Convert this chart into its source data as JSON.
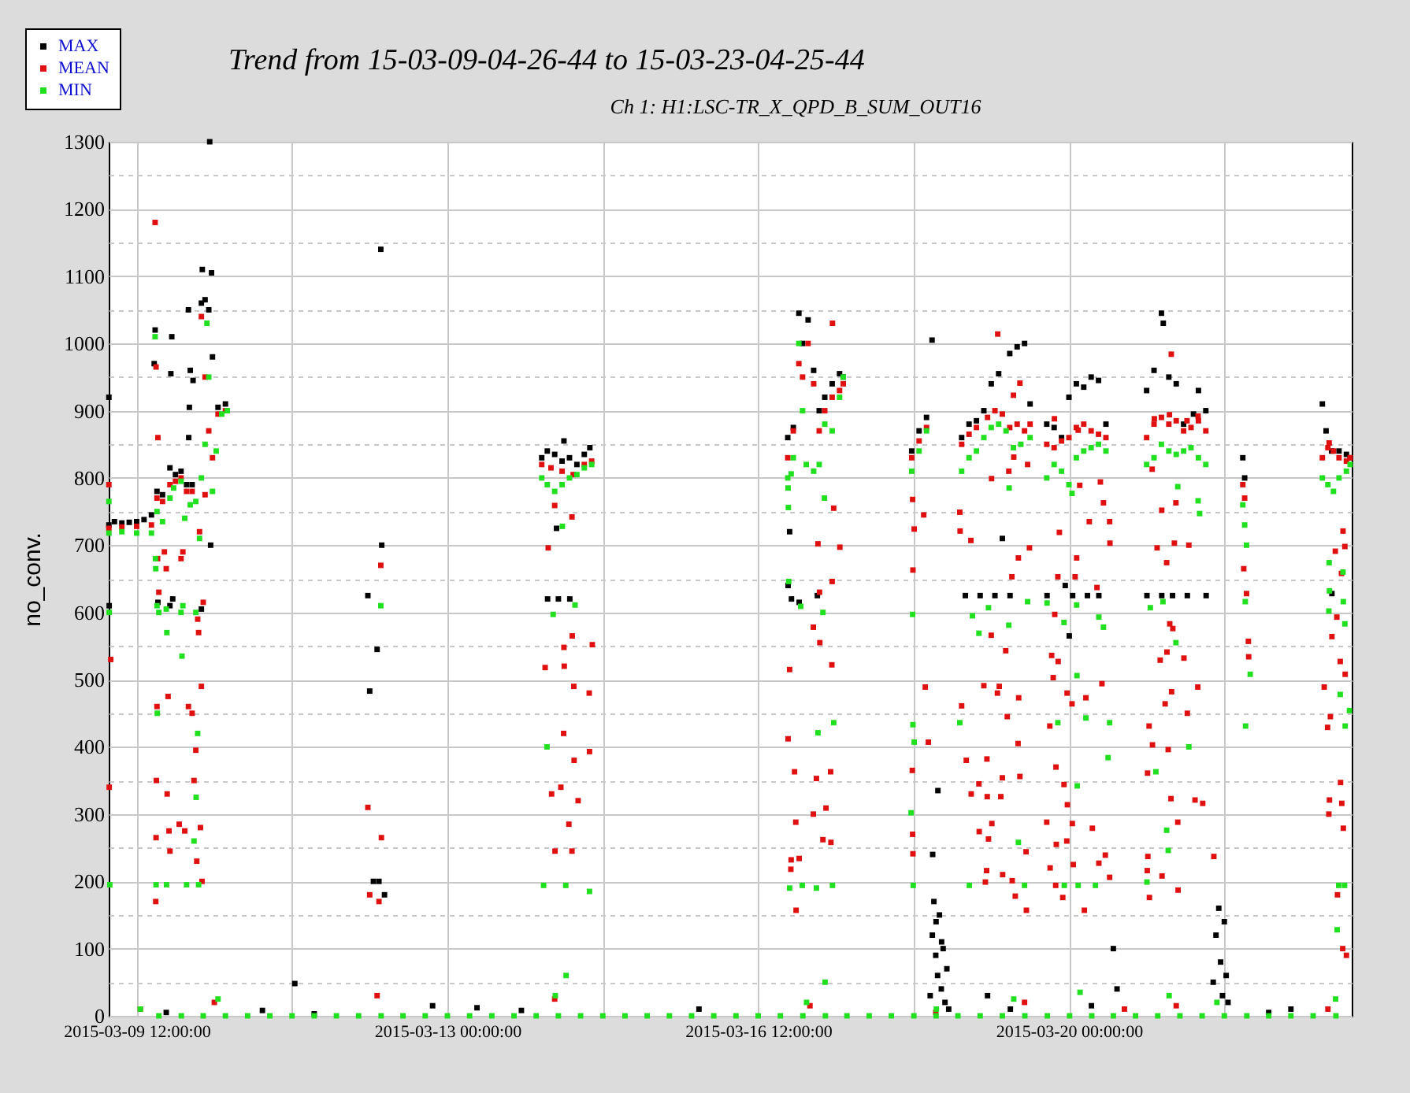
{
  "chart_data": {
    "type": "scatter",
    "title": "Trend from 15-03-09-04-26-44 to 15-03-23-04-25-44",
    "subtitle": "Ch 1: H1:LSC-TR_X_QPD_B_SUM_OUT16",
    "ylabel": "no_conv.",
    "marker": "square",
    "grid": true,
    "legend": "top left",
    "xlim": [
      "2015-03-09T04:27",
      "2015-03-23T04:26"
    ],
    "xticks": [
      {
        "value": "2015-03-09T12:00",
        "label": "2015-03-09 12:00:00"
      },
      {
        "value": "2015-03-11T06:00",
        "label": null
      },
      {
        "value": "2015-03-13T00:00",
        "label": "2015-03-13 00:00:00"
      },
      {
        "value": "2015-03-14T18:00",
        "label": null
      },
      {
        "value": "2015-03-16T12:00",
        "label": "2015-03-16 12:00:00"
      },
      {
        "value": "2015-03-18T06:00",
        "label": null
      },
      {
        "value": "2015-03-20T00:00",
        "label": "2015-03-20 00:00:00"
      },
      {
        "value": "2015-03-21T18:00",
        "label": null
      }
    ],
    "ylim": [
      0,
      1300
    ],
    "yticks": [
      0,
      {
        "value": 50,
        "label": null
      },
      100,
      {
        "value": 150,
        "label": null
      },
      200,
      {
        "value": 250,
        "label": null
      },
      300,
      {
        "value": 350,
        "label": null
      },
      400,
      {
        "value": 450,
        "label": null
      },
      500,
      {
        "value": 550,
        "label": null
      },
      600,
      {
        "value": 650,
        "label": null
      },
      700,
      {
        "value": 750,
        "label": null
      },
      800,
      {
        "value": 850,
        "label": null
      },
      900,
      {
        "value": 950,
        "label": null
      },
      1000,
      {
        "value": 1050,
        "label": null
      },
      1100,
      {
        "value": 1150,
        "label": null
      },
      1200,
      {
        "value": 1250,
        "label": null
      },
      1300
    ],
    "series": [
      {
        "name": "MAX",
        "color": "#000000",
        "x": [
          "2015-03-09T04:30",
          "2015-03-09T06:00",
          "2015-03-09T08:00",
          "2015-03-09T10:00",
          "2015-03-09T12:00",
          "2015-03-09T14:00",
          "2015-03-09T16:00",
          "2015-03-09T17:30",
          "2015-03-09T19:00",
          "2015-03-09T21:00",
          "2015-03-09T22:30",
          "2015-03-10T00:00",
          "2015-03-10T01:30",
          "2015-03-10T03:00",
          "2015-03-10T05:30",
          "2015-03-10T06:30",
          "2015-03-10T07:30",
          "2015-03-10T08:30",
          "2015-03-10T10:00",
          "2015-03-10T12:00",
          "2015-03-09T04:30",
          "2015-03-09T04:35",
          "2015-03-09T17:00",
          "2015-03-09T16:45",
          "2015-03-09T21:30",
          "2015-03-09T21:15",
          "2015-03-10T02:00",
          "2015-03-10T02:30",
          "2015-03-10T03:15",
          "2015-03-10T02:15",
          "2015-03-10T02:05",
          "2015-03-10T05:45",
          "2015-03-10T08:15",
          "2015-03-10T07:45",
          "2015-03-10T08:00",
          "2015-03-09T17:45",
          "2015-03-09T21:00",
          "2015-03-09T21:45",
          "2015-03-10T05:30",
          "2015-03-11T06:45",
          "2015-03-09T20:00",
          "2015-03-10T22:00",
          "2015-03-12T20:00",
          "2015-03-13T08:00",
          "2015-03-13T20:00",
          "2015-03-15T20:00",
          "2015-03-11T12:00",
          "2015-03-12T02:30",
          "2015-03-12T03:00",
          "2015-03-12T06:00",
          "2015-03-12T06:15",
          "2015-03-12T05:00",
          "2015-03-12T04:00",
          "2015-03-12T05:30",
          "2015-03-12T07:00",
          "2015-03-14T01:30",
          "2015-03-14T03:00",
          "2015-03-14T05:00",
          "2015-03-14T07:00",
          "2015-03-14T09:00",
          "2015-03-14T11:00",
          "2015-03-14T13:00",
          "2015-03-14T14:30",
          "2015-03-14T03:05",
          "2015-03-14T06:00",
          "2015-03-14T09:05",
          "2015-03-14T05:30",
          "2015-03-14T07:30",
          "2015-03-16T20:00",
          "2015-03-16T21:30",
          "2015-03-16T23:00",
          "2015-03-17T00:00",
          "2015-03-17T01:30",
          "2015-03-17T03:00",
          "2015-03-17T04:30",
          "2015-03-17T06:00",
          "2015-03-17T08:00",
          "2015-03-17T10:00",
          "2015-03-17T11:00",
          "2015-03-16T20:05",
          "2015-03-16T21:00",
          "2015-03-16T23:05",
          "2015-03-17T04:00",
          "2015-03-16T20:30",
          "2015-03-18T05:30",
          "2015-03-18T07:30",
          "2015-03-18T09:30",
          "2015-03-18T11:00",
          "2015-03-18T10:30",
          "2015-03-18T11:05",
          "2015-03-18T11:30",
          "2015-03-18T12:00",
          "2015-03-18T12:30",
          "2015-03-18T13:00",
          "2015-03-18T13:30",
          "2015-03-18T14:00",
          "2015-03-18T14:30",
          "2015-03-18T15:00",
          "2015-03-18T15:30",
          "2015-03-18T11:10",
          "2015-03-18T12:35",
          "2015-03-18T12:05",
          "2015-03-18T13:35",
          "2015-03-18T19:00",
          "2015-03-18T21:00",
          "2015-03-18T23:00",
          "2015-03-19T01:00",
          "2015-03-19T03:00",
          "2015-03-19T05:00",
          "2015-03-19T08:00",
          "2015-03-19T10:00",
          "2015-03-19T12:00",
          "2015-03-19T13:30",
          "2015-03-18T20:00",
          "2015-03-19T00:00",
          "2015-03-19T04:00",
          "2015-03-19T08:05",
          "2015-03-19T06:00",
          "2015-03-19T18:00",
          "2015-03-19T20:00",
          "2015-03-19T22:00",
          "2015-03-20T00:00",
          "2015-03-20T02:00",
          "2015-03-20T04:00",
          "2015-03-20T06:00",
          "2015-03-20T08:00",
          "2015-03-20T10:00",
          "2015-03-19T18:05",
          "2015-03-19T23:00",
          "2015-03-20T01:00",
          "2015-03-20T05:00",
          "2015-03-20T08:05",
          "2015-03-20T00:05",
          "2015-03-20T21:00",
          "2015-03-20T23:00",
          "2015-03-21T01:00",
          "2015-03-21T01:30",
          "2015-03-21T03:00",
          "2015-03-21T05:00",
          "2015-03-21T07:00",
          "2015-03-21T09:40",
          "2015-03-21T11:00",
          "2015-03-21T13:00",
          "2015-03-20T21:05",
          "2015-03-21T01:05",
          "2015-03-21T04:00",
          "2015-03-21T08:00",
          "2015-03-21T13:05",
          "2015-03-21T15:00",
          "2015-03-21T15:45",
          "2015-03-21T16:30",
          "2015-03-21T17:00",
          "2015-03-21T17:30",
          "2015-03-21T18:00",
          "2015-03-21T18:30",
          "2015-03-21T19:00",
          "2015-03-20T12:00",
          "2015-03-20T13:00",
          "2015-03-19T02:00",
          "2015-03-19T08:10",
          "2015-03-20T06:05",
          "2015-03-22T06:00",
          "2015-03-22T12:00",
          "2015-03-21T23:00",
          "2015-03-21T23:30",
          "2015-03-22T20:30",
          "2015-03-22T21:30",
          "2015-03-22T23:00",
          "2015-03-23T01:00",
          "2015-03-23T03:00",
          "2015-03-23T04:00",
          "2015-03-22T23:05"
        ],
        "values": [
          730,
          735,
          733,
          734,
          735,
          738,
          745,
          780,
          775,
          815,
          805,
          810,
          790,
          790,
          1060,
          1065,
          1050,
          980,
          905,
          910,
          920,
          610,
          1020,
          970,
          1010,
          955,
          1050,
          960,
          945,
          905,
          860,
          1110,
          1105,
          1300,
          700,
          615,
          610,
          620,
          605,
          48,
          5,
          8,
          15,
          12,
          8,
          10,
          3,
          625,
          483,
          1140,
          700,
          545,
          200,
          200,
          180,
          830,
          840,
          835,
          825,
          830,
          820,
          835,
          845,
          620,
          620,
          620,
          725,
          855,
          860,
          875,
          1045,
          1000,
          1035,
          960,
          900,
          920,
          940,
          955,
          950,
          640,
          620,
          615,
          625,
          720,
          840,
          870,
          890,
          1005,
          30,
          120,
          170,
          90,
          60,
          150,
          40,
          100,
          20,
          70,
          10,
          240,
          335,
          140,
          110,
          860,
          880,
          885,
          900,
          940,
          955,
          985,
          995,
          1000,
          910,
          625,
          625,
          625,
          625,
          710,
          880,
          875,
          860,
          920,
          940,
          935,
          950,
          945,
          880,
          625,
          640,
          625,
          625,
          625,
          565,
          930,
          960,
          1045,
          1030,
          950,
          940,
          880,
          895,
          930,
          900,
          625,
          625,
          625,
          625,
          625,
          50,
          120,
          160,
          80,
          30,
          140,
          60,
          20,
          100,
          40,
          30,
          10,
          15,
          5,
          10,
          830,
          800,
          910,
          870,
          840,
          840,
          835,
          830,
          628
        ]
      },
      {
        "name": "MEAN",
        "color": "#e01010",
        "x": [
          "2015-03-09T04:30",
          "2015-03-09T08:00",
          "2015-03-09T12:00",
          "2015-03-09T16:00",
          "2015-03-09T17:30",
          "2015-03-09T19:00",
          "2015-03-09T21:00",
          "2015-03-09T22:30",
          "2015-03-10T00:00",
          "2015-03-10T01:30",
          "2015-03-10T03:00",
          "2015-03-10T05:30",
          "2015-03-10T06:30",
          "2015-03-10T07:30",
          "2015-03-10T08:30",
          "2015-03-10T10:00",
          "2015-03-10T12:00",
          "2015-03-09T04:30",
          "2015-03-09T04:35",
          "2015-03-09T05:00",
          "2015-03-09T17:00",
          "2015-03-09T17:15",
          "2015-03-09T17:45",
          "2015-03-09T17:30",
          "2015-03-09T17:20",
          "2015-03-09T17:15",
          "2015-03-09T17:10",
          "2015-03-09T17:40",
          "2015-03-09T18:00",
          "2015-03-09T19:30",
          "2015-03-09T20:00",
          "2015-03-09T20:30",
          "2015-03-09T20:15",
          "2015-03-09T20:45",
          "2015-03-09T21:00",
          "2015-03-10T00:00",
          "2015-03-10T00:30",
          "2015-03-09T23:30",
          "2015-03-10T01:00",
          "2015-03-10T02:00",
          "2015-03-10T03:00",
          "2015-03-10T03:30",
          "2015-03-10T04:00",
          "2015-03-10T04:15",
          "2015-03-10T04:30",
          "2015-03-10T04:45",
          "2015-03-10T05:00",
          "2015-03-10T05:15",
          "2015-03-10T05:30",
          "2015-03-10T05:40",
          "2015-03-10T06:00",
          "2015-03-10T06:30",
          "2015-03-12T02:30",
          "2015-03-12T03:00",
          "2015-03-12T06:00",
          "2015-03-12T06:10",
          "2015-03-12T05:30",
          "2015-03-14T01:30",
          "2015-03-14T04:00",
          "2015-03-14T07:00",
          "2015-03-14T10:00",
          "2015-03-14T13:00",
          "2015-03-14T15:00",
          "2015-03-14T03:15",
          "2015-03-14T05:00",
          "2015-03-14T09:40",
          "2015-03-14T07:30",
          "2015-03-14T15:10",
          "2015-03-14T02:25",
          "2015-03-14T07:35",
          "2015-03-14T10:10",
          "2015-03-14T14:20",
          "2015-03-14T09:45",
          "2015-03-14T07:25",
          "2015-03-14T14:25",
          "2015-03-14T10:15",
          "2015-03-14T06:40",
          "2015-03-14T04:10",
          "2015-03-14T11:20",
          "2015-03-14T08:50",
          "2015-03-14T05:05",
          "2015-03-14T09:40",
          "2015-03-16T20:00",
          "2015-03-16T21:30",
          "2015-03-16T23:00",
          "2015-03-17T00:00",
          "2015-03-17T01:30",
          "2015-03-17T03:00",
          "2015-03-17T04:30",
          "2015-03-17T06:00",
          "2015-03-17T08:00",
          "2015-03-17T10:00",
          "2015-03-17T11:00",
          "2015-03-17T08:05",
          "2015-03-17T08:25",
          "2015-03-17T10:05",
          "2015-03-17T04:10",
          "2015-03-17T08:00",
          "2015-03-17T04:35",
          "2015-03-17T02:55",
          "2015-03-17T04:40",
          "2015-03-17T07:55",
          "2015-03-16T20:30",
          "2015-03-16T20:05",
          "2015-03-16T21:50",
          "2015-03-17T03:45",
          "2015-03-17T07:35",
          "2015-03-16T22:10",
          "2015-03-17T02:55",
          "2015-03-17T06:20",
          "2015-03-17T05:30",
          "2015-03-17T07:40",
          "2015-03-16T20:55",
          "2015-03-16T23:05",
          "2015-03-16T20:50",
          "2015-03-16T22:15",
          "2015-03-18T05:30",
          "2015-03-18T07:30",
          "2015-03-18T09:30",
          "2015-03-18T05:45",
          "2015-03-18T08:45",
          "2015-03-18T06:10",
          "2015-03-18T05:50",
          "2015-03-18T10:00",
          "2015-03-18T09:10",
          "2015-03-18T05:40",
          "2015-03-18T05:45",
          "2015-03-18T05:50",
          "2015-03-18T19:00",
          "2015-03-18T21:00",
          "2015-03-18T23:00",
          "2015-03-19T02:00",
          "2015-03-19T04:00",
          "2015-03-19T06:00",
          "2015-03-19T08:00",
          "2015-03-19T10:00",
          "2015-03-19T12:00",
          "2015-03-19T13:30",
          "2015-03-19T04:45",
          "2015-03-19T09:00",
          "2015-03-19T10:45",
          "2015-03-19T09:05",
          "2015-03-19T12:50",
          "2015-03-19T07:45",
          "2015-03-19T03:05",
          "2015-03-18T18:30",
          "2015-03-18T18:35",
          "2015-03-18T21:30",
          "2015-03-19T13:20",
          "2015-03-19T10:20",
          "2015-03-19T08:35",
          "2015-03-19T03:00",
          "2015-03-19T06:55",
          "2015-03-19T01:00",
          "2015-03-19T05:10",
          "2015-03-19T04:40",
          "2015-03-19T10:25",
          "2015-03-18T19:00",
          "2015-03-19T07:20",
          "2015-03-19T10:15",
          "2015-03-18T20:15",
          "2015-03-19T01:50",
          "2015-03-19T06:00",
          "2015-03-19T10:45",
          "2015-03-18T23:40",
          "2015-03-18T21:35",
          "2015-03-19T01:55",
          "2015-03-19T05:35",
          "2015-03-19T03:10",
          "2015-03-18T23:45",
          "2015-03-19T02:15",
          "2015-03-19T12:25",
          "2015-03-19T01:45",
          "2015-03-19T06:05",
          "2015-03-19T08:40",
          "2015-03-19T01:25",
          "2015-03-19T09:30",
          "2015-03-19T12:30",
          "2015-03-19T18:00",
          "2015-03-19T20:00",
          "2015-03-19T22:00",
          "2015-03-20T00:00",
          "2015-03-20T02:00",
          "2015-03-20T04:00",
          "2015-03-20T06:00",
          "2015-03-20T08:00",
          "2015-03-20T10:00",
          "2015-03-19T20:05",
          "2015-03-19T21:25",
          "2015-03-20T02:30",
          "2015-03-20T05:30",
          "2015-03-20T11:00",
          "2015-03-20T11:05",
          "2015-03-20T09:20",
          "2015-03-20T02:55",
          "2015-03-20T08:30",
          "2015-03-20T02:05",
          "2015-03-19T21:00",
          "2015-03-20T01:40",
          "2015-03-20T07:35",
          "2015-03-19T20:10",
          "2015-03-19T19:20",
          "2015-03-19T21:05",
          "2015-03-19T19:45",
          "2015-03-20T08:55",
          "2015-03-19T23:30",
          "2015-03-20T04:35",
          "2015-03-20T00:50",
          "2015-03-19T18:50",
          "2015-03-19T20:30",
          "2015-03-19T22:40",
          "2015-03-19T23:35",
          "2015-03-19T18:00",
          "2015-03-20T00:55",
          "2015-03-20T06:20",
          "2015-03-19T20:35",
          "2015-03-19T23:25",
          "2015-03-20T09:50",
          "2015-03-20T08:05",
          "2015-03-19T18:55",
          "2015-03-20T01:10",
          "2015-03-20T11:00",
          "2015-03-19T22:20",
          "2015-03-19T20:25",
          "2015-03-20T04:10",
          "2015-03-20T21:00",
          "2015-03-20T23:00",
          "2015-03-21T01:00",
          "2015-03-21T03:00",
          "2015-03-21T05:00",
          "2015-03-21T07:00",
          "2015-03-21T09:00",
          "2015-03-21T11:00",
          "2015-03-21T13:00",
          "2015-03-21T03:40",
          "2015-03-21T03:10",
          "2015-03-20T23:05",
          "2015-03-21T07:55",
          "2015-03-21T10:55",
          "2015-03-20T22:30",
          "2015-03-21T04:55",
          "2015-03-21T01:05",
          "2015-03-21T04:30",
          "2015-03-21T08:25",
          "2015-03-20T23:50",
          "2015-03-21T02:25",
          "2015-03-21T03:15",
          "2015-03-21T04:05",
          "2015-03-21T00:40",
          "2015-03-21T02:30",
          "2015-03-21T07:05",
          "2015-03-21T03:45",
          "2015-03-21T10:50",
          "2015-03-21T02:00",
          "2015-03-21T08:00",
          "2015-03-20T21:40",
          "2015-03-20T22:35",
          "2015-03-21T02:50",
          "2015-03-20T21:15",
          "2015-03-21T03:35",
          "2015-03-21T10:05",
          "2015-03-21T12:10",
          "2015-03-21T05:25",
          "2015-03-20T21:20",
          "2015-03-20T21:10",
          "2015-03-21T01:10",
          "2015-03-20T21:45",
          "2015-03-21T05:30",
          "2015-03-21T15:10",
          "2015-03-21T23:00",
          "2015-03-21T23:30",
          "2015-03-21T23:15",
          "2015-03-22T00:00",
          "2015-03-22T00:30",
          "2015-03-22T00:35",
          "2015-03-22T20:30",
          "2015-03-22T22:00",
          "2015-03-22T23:30",
          "2015-03-23T01:00",
          "2015-03-23T03:00",
          "2015-03-23T04:00",
          "2015-03-22T22:20",
          "2015-03-23T02:05",
          "2015-03-23T02:35",
          "2015-03-23T00:00",
          "2015-03-23T01:40",
          "2015-03-23T00:25",
          "2015-03-22T23:05",
          "2015-03-23T01:20",
          "2015-03-22T21:00",
          "2015-03-23T02:40",
          "2015-03-22T22:40",
          "2015-03-22T21:55",
          "2015-03-23T01:25",
          "2015-03-22T22:25",
          "2015-03-23T01:45",
          "2015-03-22T22:15",
          "2015-03-23T02:10",
          "2015-03-23T00:35",
          "2015-03-09T13:00",
          "2015-03-10T09:00",
          "2015-03-12T05:00",
          "2015-03-14T05:00",
          "2015-03-17T02:00",
          "2015-03-18T12:00",
          "2015-03-19T12:00",
          "2015-03-20T15:00",
          "2015-03-21T05:00",
          "2015-03-22T22:00",
          "2015-03-23T02:00",
          "2015-03-23T03:00"
        ],
        "values": [
          725,
          727,
          728,
          730,
          770,
          765,
          790,
          795,
          800,
          780,
          780,
          1040,
          950,
          870,
          830,
          895,
          900,
          790,
          340,
          530,
          1180,
          965,
          860,
          460,
          350,
          265,
          170,
          680,
          630,
          690,
          665,
          475,
          330,
          275,
          245,
          680,
          690,
          285,
          275,
          460,
          450,
          350,
          395,
          230,
          590,
          570,
          720,
          280,
          490,
          200,
          615,
          775,
          310,
          180,
          670,
          265,
          170,
          820,
          815,
          810,
          805,
          820,
          825,
          696,
          759,
          742,
          548,
          552,
          518,
          520,
          490,
          480,
          565,
          420,
          393,
          380,
          340,
          330,
          320,
          285,
          245,
          245,
          830,
          870,
          970,
          950,
          1000,
          940,
          870,
          900,
          920,
          930,
          940,
          1030,
          755,
          697,
          702,
          646,
          630,
          578,
          555,
          522,
          515,
          412,
          363,
          353,
          363,
          288,
          300,
          309,
          262,
          258,
          232,
          234,
          218,
          157,
          830,
          855,
          875,
          768,
          745,
          724,
          663,
          407,
          489,
          365,
          270,
          241,
          850,
          865,
          875,
          890,
          900,
          895,
          875,
          880,
          870,
          880,
          1014,
          923,
          941,
          831,
          820,
          810,
          799,
          749,
          721,
          707,
          696,
          681,
          653,
          566,
          543,
          491,
          490,
          480,
          473,
          461,
          445,
          405,
          380,
          382,
          354,
          356,
          345,
          330,
          326,
          326,
          286,
          274,
          263,
          244,
          216,
          210,
          201,
          199,
          178,
          157,
          850,
          845,
          855,
          860,
          875,
          880,
          870,
          865,
          860,
          888,
          719,
          871,
          735,
          735,
          703,
          763,
          789,
          794,
          681,
          653,
          653,
          637,
          597,
          536,
          527,
          503,
          494,
          480,
          473,
          464,
          431,
          370,
          344,
          314,
          288,
          286,
          279,
          255,
          260,
          239,
          227,
          220,
          225,
          206,
          176,
          194,
          157,
          860,
          880,
          890,
          880,
          885,
          870,
          875,
          885,
          870,
          984,
          894,
          888,
          885,
          892,
          813,
          763,
          752,
          703,
          700,
          696,
          674,
          583,
          576,
          529,
          541,
          532,
          482,
          489,
          464,
          450,
          431,
          403,
          396,
          361,
          323,
          321,
          316,
          288,
          237,
          216,
          208,
          176,
          187,
          237,
          790,
          770,
          665,
          628,
          557,
          534,
          830,
          845,
          840,
          830,
          825,
          830,
          852,
          721,
          698,
          691,
          658,
          593,
          564,
          527,
          489,
          508,
          445,
          429,
          347,
          321,
          316,
          300,
          279,
          180,
          10,
          20,
          30,
          25,
          15,
          5,
          20,
          10,
          15,
          10,
          100,
          90
        ]
      },
      {
        "name": "MIN",
        "color": "#20e020",
        "x": [
          "2015-03-09T04:30",
          "2015-03-09T08:00",
          "2015-03-09T12:00",
          "2015-03-09T16:00",
          "2015-03-09T17:30",
          "2015-03-09T19:00",
          "2015-03-09T21:00",
          "2015-03-09T22:00",
          "2015-03-10T00:00",
          "2015-03-10T01:00",
          "2015-03-10T02:30",
          "2015-03-10T04:00",
          "2015-03-10T05:30",
          "2015-03-10T06:30",
          "2015-03-10T07:00",
          "2015-03-10T07:30",
          "2015-03-10T08:30",
          "2015-03-10T09:30",
          "2015-03-10T11:00",
          "2015-03-10T12:30",
          "2015-03-09T04:30",
          "2015-03-09T04:35",
          "2015-03-09T04:45",
          "2015-03-09T17:00",
          "2015-03-09T17:05",
          "2015-03-09T17:10",
          "2015-03-09T17:30",
          "2015-03-09T18:00",
          "2015-03-09T17:35",
          "2015-03-09T17:15",
          "2015-03-09T20:00",
          "2015-03-09T20:10",
          "2015-03-09T20:05",
          "2015-03-10T00:00",
          "2015-03-10T00:30",
          "2015-03-10T00:15",
          "2015-03-10T01:30",
          "2015-03-10T04:00",
          "2015-03-10T04:30",
          "2015-03-10T04:45",
          "2015-03-10T04:05",
          "2015-03-10T03:30",
          "2015-03-10T05:00",
          "2015-03-12T06:00",
          "2015-03-14T01:30",
          "2015-03-14T03:00",
          "2015-03-14T05:00",
          "2015-03-14T07:00",
          "2015-03-14T09:00",
          "2015-03-14T11:00",
          "2015-03-14T13:00",
          "2015-03-14T15:00",
          "2015-03-14T07:05",
          "2015-03-14T04:35",
          "2015-03-14T10:30",
          "2015-03-14T02:55",
          "2015-03-14T02:00",
          "2015-03-14T08:00",
          "2015-03-14T14:25",
          "2015-03-16T20:00",
          "2015-03-16T21:30",
          "2015-03-16T23:00",
          "2015-03-17T00:00",
          "2015-03-17T01:00",
          "2015-03-17T03:00",
          "2015-03-17T04:30",
          "2015-03-17T06:00",
          "2015-03-17T08:00",
          "2015-03-17T10:00",
          "2015-03-17T11:00",
          "2015-03-16T20:05",
          "2015-03-16T20:10",
          "2015-03-16T20:55",
          "2015-03-17T05:55",
          "2015-03-16T20:15",
          "2015-03-16T23:30",
          "2015-03-17T05:30",
          "2015-03-17T08:25",
          "2015-03-17T04:10",
          "2015-03-16T20:30",
          "2015-03-16T23:55",
          "2015-03-17T03:45",
          "2015-03-17T08:05",
          "2015-03-18T05:30",
          "2015-03-18T07:30",
          "2015-03-18T09:30",
          "2015-03-18T05:45",
          "2015-03-18T05:50",
          "2015-03-18T06:10",
          "2015-03-18T05:20",
          "2015-03-18T05:55",
          "2015-03-18T19:00",
          "2015-03-18T21:00",
          "2015-03-18T23:00",
          "2015-03-19T01:00",
          "2015-03-19T03:00",
          "2015-03-19T05:00",
          "2015-03-19T07:00",
          "2015-03-19T09:00",
          "2015-03-19T11:00",
          "2015-03-19T13:30",
          "2015-03-18T23:40",
          "2015-03-19T02:15",
          "2015-03-19T07:45",
          "2015-03-19T07:50",
          "2015-03-19T12:50",
          "2015-03-19T10:20",
          "2015-03-19T12:00",
          "2015-03-18T21:05",
          "2015-03-18T18:30",
          "2015-03-18T21:55",
          "2015-03-19T18:00",
          "2015-03-19T20:00",
          "2015-03-19T22:00",
          "2015-03-20T00:00",
          "2015-03-20T02:00",
          "2015-03-20T04:00",
          "2015-03-20T06:00",
          "2015-03-20T08:00",
          "2015-03-20T10:00",
          "2015-03-20T00:50",
          "2015-03-19T18:05",
          "2015-03-19T22:40",
          "2015-03-20T02:05",
          "2015-03-20T08:05",
          "2015-03-20T09:20",
          "2015-03-20T02:10",
          "2015-03-20T04:35",
          "2015-03-20T11:00",
          "2015-03-20T10:35",
          "2015-03-20T02:15",
          "2015-03-19T22:45",
          "2015-03-20T02:30",
          "2015-03-20T07:10",
          "2015-03-19T21:00",
          "2015-03-20T21:00",
          "2015-03-20T23:00",
          "2015-03-21T01:00",
          "2015-03-21T03:00",
          "2015-03-21T05:00",
          "2015-03-21T07:00",
          "2015-03-21T09:00",
          "2015-03-21T11:00",
          "2015-03-21T13:00",
          "2015-03-21T05:25",
          "2015-03-21T10:55",
          "2015-03-21T11:20",
          "2015-03-20T22:00",
          "2015-03-21T01:25",
          "2015-03-21T04:55",
          "2015-03-21T08:25",
          "2015-03-21T02:25",
          "2015-03-21T02:50",
          "2015-03-20T23:30",
          "2015-03-20T21:05",
          "2015-03-21T23:00",
          "2015-03-21T23:30",
          "2015-03-22T00:00",
          "2015-03-21T23:40",
          "2015-03-22T01:00",
          "2015-03-21T23:45",
          "2015-03-22T20:30",
          "2015-03-22T22:00",
          "2015-03-22T23:30",
          "2015-03-23T01:00",
          "2015-03-23T03:00",
          "2015-03-23T04:00",
          "2015-03-22T22:20",
          "2015-03-23T02:05",
          "2015-03-22T22:25",
          "2015-03-23T02:10",
          "2015-03-22T22:15",
          "2015-03-23T02:35",
          "2015-03-23T01:20",
          "2015-03-23T03:50",
          "2015-03-23T02:40",
          "2015-03-23T00:55",
          "2015-03-23T02:30",
          "2015-03-23T00:30",
          "2015-03-09T13:00",
          "2015-03-10T10:00",
          "2015-03-14T05:10",
          "2015-03-14T08:05",
          "2015-03-17T01:05",
          "2015-03-17T06:05",
          "2015-03-18T12:10",
          "2015-03-19T09:05",
          "2015-03-20T03:00",
          "2015-03-21T03:05",
          "2015-03-21T16:00",
          "2015-03-23T00:05",
          "2015-03-09T18:00",
          "2015-03-10T00:05",
          "2015-03-10T06:00",
          "2015-03-10T12:00",
          "2015-03-10T18:00",
          "2015-03-11T00:00",
          "2015-03-11T06:00",
          "2015-03-11T12:00",
          "2015-03-11T18:00",
          "2015-03-12T00:00",
          "2015-03-12T06:05",
          "2015-03-12T12:00",
          "2015-03-12T18:00",
          "2015-03-13T00:00",
          "2015-03-13T06:00",
          "2015-03-13T12:00",
          "2015-03-13T18:00",
          "2015-03-14T00:00",
          "2015-03-14T06:00",
          "2015-03-14T12:00",
          "2015-03-14T18:00",
          "2015-03-15T00:00",
          "2015-03-15T06:00",
          "2015-03-15T12:00",
          "2015-03-15T18:00",
          "2015-03-16T00:00",
          "2015-03-16T06:00",
          "2015-03-16T12:00",
          "2015-03-16T18:00",
          "2015-03-17T00:05",
          "2015-03-17T06:10",
          "2015-03-17T12:00",
          "2015-03-17T18:00",
          "2015-03-18T00:00",
          "2015-03-18T06:05",
          "2015-03-18T12:05",
          "2015-03-18T18:00",
          "2015-03-19T00:00",
          "2015-03-19T06:00",
          "2015-03-19T12:05",
          "2015-03-19T18:10",
          "2015-03-20T00:10",
          "2015-03-20T06:10",
          "2015-03-20T12:00",
          "2015-03-20T18:00",
          "2015-03-21T00:00",
          "2015-03-21T06:00",
          "2015-03-21T12:00",
          "2015-03-21T18:00",
          "2015-03-22T00:05",
          "2015-03-22T06:00",
          "2015-03-22T12:00",
          "2015-03-22T18:00",
          "2015-03-23T00:10"
        ],
        "values": [
          718,
          720,
          718,
          718,
          750,
          735,
          770,
          785,
          795,
          740,
          760,
          765,
          800,
          850,
          1030,
          950,
          780,
          840,
          895,
          900,
          765,
          600,
          195,
          1010,
          680,
          665,
          610,
          600,
          450,
          195,
          605,
          570,
          195,
          600,
          610,
          535,
          195,
          600,
          420,
          195,
          325,
          260,
          710,
          610,
          800,
          790,
          780,
          790,
          800,
          805,
          815,
          820,
          728,
          597,
          611,
          400,
          194,
          194,
          185,
          800,
          830,
          1000,
          900,
          820,
          810,
          820,
          880,
          870,
          920,
          950,
          785,
          756,
          806,
          770,
          646,
          609,
          600,
          436,
          421,
          190,
          194,
          190,
          194,
          810,
          840,
          870,
          597,
          433,
          407,
          302,
          194,
          810,
          830,
          840,
          860,
          875,
          880,
          870,
          845,
          850,
          860,
          569,
          607,
          581,
          785,
          616,
          258,
          194,
          194,
          436,
          595,
          800,
          820,
          810,
          790,
          830,
          840,
          845,
          850,
          840,
          777,
          614,
          585,
          611,
          593,
          578,
          506,
          443,
          436,
          384,
          342,
          194,
          194,
          194,
          436,
          820,
          830,
          850,
          840,
          835,
          840,
          845,
          830,
          820,
          787,
          766,
          747,
          607,
          616,
          555,
          400,
          276,
          246,
          363,
          199,
          760,
          730,
          700,
          616,
          508,
          431,
          800,
          790,
          780,
          800,
          810,
          820,
          674,
          660,
          632,
          616,
          602,
          583,
          478,
          454,
          431,
          194,
          194,
          128,
          10,
          25,
          30,
          60,
          20,
          50,
          10,
          25,
          35,
          30,
          20,
          25,
          0,
          0,
          0,
          0,
          0,
          0,
          0,
          0,
          0,
          0,
          0,
          0,
          0,
          0,
          0,
          0,
          0,
          0,
          0,
          0,
          0,
          0,
          0,
          0,
          0,
          0,
          0,
          0,
          0,
          0,
          0,
          0,
          0,
          0,
          0,
          0,
          0,
          0,
          0,
          0,
          0,
          0,
          0,
          0,
          0,
          0,
          0,
          0,
          0,
          0,
          0,
          0,
          0,
          0
        ]
      }
    ]
  }
}
